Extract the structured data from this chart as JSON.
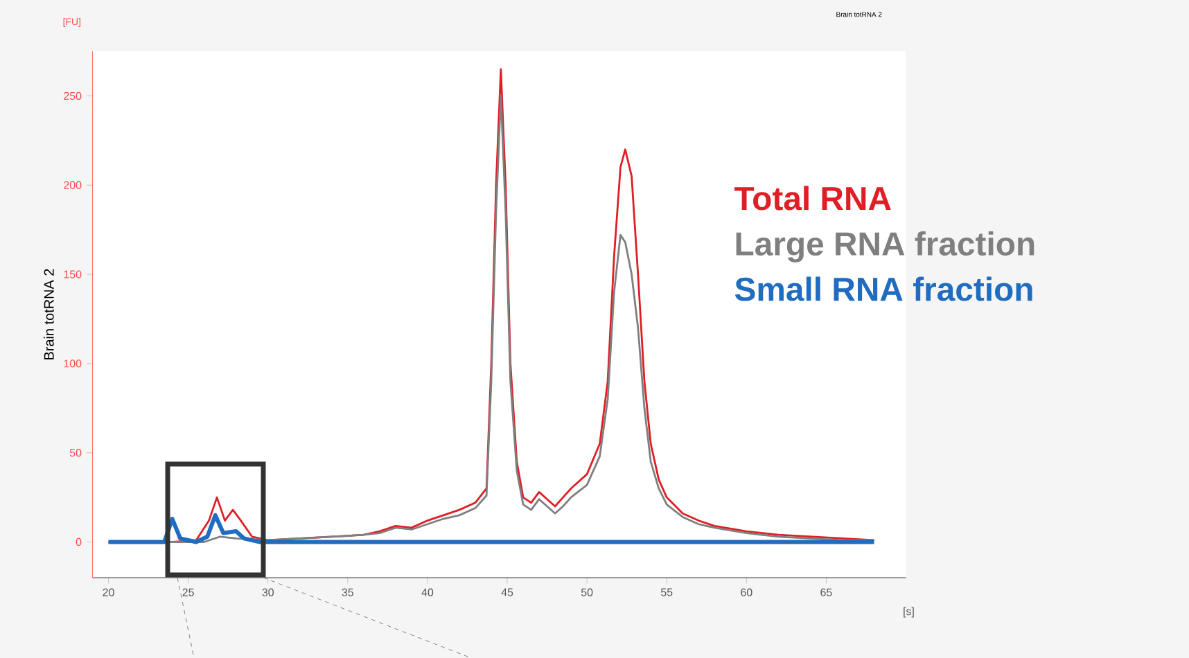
{
  "chart_data": {
    "type": "line",
    "title": "Brain totRNA 2",
    "xlabel": "[s]",
    "ylabel": "Brain totRNA 2",
    "annotations": [
      "[FU]"
    ],
    "xlim": [
      19,
      70
    ],
    "ylim": [
      -20,
      275
    ],
    "xticks": [
      20,
      25,
      30,
      35,
      40,
      45,
      50,
      55,
      60,
      65
    ],
    "yticks": [
      0,
      50,
      100,
      150,
      200,
      250
    ],
    "grid": false,
    "legend": "right",
    "line_style": "solid",
    "series": [
      {
        "name": "Total RNA",
        "color": "#e01e25",
        "x": [
          20,
          24,
          25.5,
          26.3,
          26.8,
          27.3,
          27.8,
          28.3,
          29,
          30,
          32,
          34,
          36,
          37,
          38,
          39,
          40,
          41,
          42,
          43,
          43.7,
          44.0,
          44.3,
          44.6,
          44.9,
          45.2,
          45.6,
          46,
          46.5,
          47,
          47.5,
          48,
          48.5,
          49,
          50,
          50.8,
          51.3,
          51.7,
          52.1,
          52.4,
          52.8,
          53.2,
          53.6,
          54,
          54.5,
          55,
          56,
          57,
          58,
          60,
          62,
          64,
          66,
          68
        ],
        "values": [
          0,
          0,
          1,
          12,
          25,
          12,
          18,
          12,
          3,
          1,
          2,
          3,
          4,
          6,
          9,
          8,
          12,
          15,
          18,
          22,
          30,
          100,
          200,
          265,
          200,
          100,
          45,
          25,
          22,
          28,
          24,
          20,
          25,
          30,
          38,
          55,
          90,
          160,
          210,
          220,
          205,
          150,
          90,
          55,
          35,
          25,
          16,
          12,
          9,
          6,
          4,
          3,
          2,
          1
        ]
      },
      {
        "name": "Large RNA fraction",
        "color": "#7f7f7f",
        "x": [
          20,
          26,
          27,
          28,
          30,
          32,
          34,
          36,
          37,
          38,
          39,
          40,
          41,
          42,
          43,
          43.7,
          44.0,
          44.3,
          44.6,
          44.9,
          45.2,
          45.6,
          46,
          46.5,
          47,
          47.5,
          48,
          48.5,
          49,
          50,
          50.8,
          51.3,
          51.7,
          52.1,
          52.4,
          52.8,
          53.2,
          53.6,
          54,
          54.5,
          55,
          56,
          57,
          58,
          60,
          62,
          64,
          66,
          68
        ],
        "values": [
          0,
          0,
          3,
          2,
          1,
          2,
          3,
          4,
          5,
          8,
          7,
          10,
          13,
          15,
          19,
          26,
          90,
          185,
          250,
          185,
          90,
          40,
          21,
          18,
          24,
          20,
          16,
          20,
          25,
          32,
          48,
          80,
          140,
          172,
          168,
          150,
          120,
          75,
          45,
          30,
          21,
          14,
          10,
          8,
          5,
          3,
          2,
          1,
          1
        ]
      },
      {
        "name": "Small RNA fraction",
        "color": "#1f6cc0",
        "x": [
          20,
          23.5,
          24,
          24.5,
          25.5,
          26.2,
          26.7,
          27.2,
          28,
          28.5,
          29.5,
          68
        ],
        "values": [
          0,
          0,
          13,
          2,
          0,
          3,
          15,
          5,
          6,
          2,
          0,
          0
        ]
      }
    ]
  }
}
